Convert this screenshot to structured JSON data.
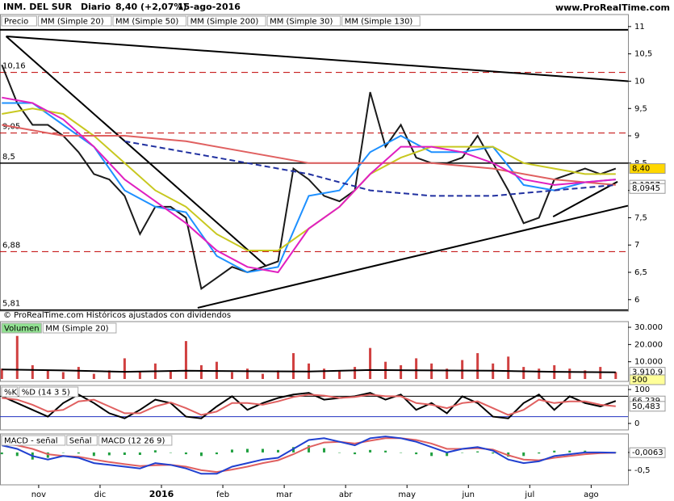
{
  "header": {
    "symbol": "INM. DEL SUR",
    "period": "Diario",
    "last": "8,40 (+2,07%)",
    "date": "15-ago-2016",
    "site": "www.ProRealTime.com",
    "footer": "© ProRealTime.com Históricos ajustados con dividendos"
  },
  "chart_data": [
    {
      "type": "line",
      "x": [
        0.4,
        0.65,
        0.9,
        1.15,
        1.4,
        1.65,
        1.9,
        2.15,
        2.4,
        2.65,
        2.9,
        3.15,
        3.4,
        3.65,
        3.9,
        4.15,
        4.4,
        4.65,
        4.9,
        5.15,
        5.4,
        5.65,
        5.9,
        6.15,
        6.4,
        6.65,
        6.9,
        7.15,
        7.4,
        7.65,
        7.9,
        8.15,
        8.4,
        8.65,
        8.9,
        9.15,
        9.4,
        9.65,
        9.9,
        10.15,
        10.4
      ],
      "xlim": [
        0.37,
        10.6
      ],
      "xticks": [
        {
          "value": 1,
          "label": "nov"
        },
        {
          "value": 2,
          "label": "dic"
        },
        {
          "value": 3,
          "label": "2016"
        },
        {
          "value": 4,
          "label": "feb"
        },
        {
          "value": 5,
          "label": "mar"
        },
        {
          "value": 6,
          "label": "abr"
        },
        {
          "value": 7,
          "label": "may"
        },
        {
          "value": 8,
          "label": "jun"
        },
        {
          "value": 9,
          "label": "jul"
        },
        {
          "value": 10,
          "label": "ago"
        }
      ],
      "ylim": [
        5.79,
        11.22
      ],
      "yticks": [
        6,
        {
          "value": 6.5,
          "label": "6,5"
        },
        7,
        {
          "value": 7.5,
          "label": "7,5"
        },
        8,
        {
          "value": 8.5,
          "label": "8,5"
        },
        9,
        {
          "value": 9.5,
          "label": "9,5"
        },
        10,
        {
          "value": 10.5,
          "label": "10,5"
        },
        11
      ],
      "series": [
        {
          "name": "Precio",
          "color": "#1a1a1a",
          "style": "line",
          "values": [
            10.3,
            9.6,
            9.2,
            9.2,
            9.0,
            8.7,
            8.3,
            8.2,
            7.9,
            7.2,
            7.7,
            7.7,
            7.5,
            6.2,
            6.4,
            6.6,
            6.5,
            6.6,
            6.7,
            8.4,
            8.2,
            7.9,
            7.8,
            8.0,
            9.8,
            8.8,
            9.2,
            8.6,
            8.5,
            8.5,
            8.6,
            9.0,
            8.5,
            8.0,
            7.4,
            7.5,
            8.2,
            8.3,
            8.4,
            8.3,
            8.4
          ]
        },
        {
          "name": "MM (Simple 20)",
          "color": "#1e90ff",
          "style": "line",
          "x": [
            0.4,
            0.9,
            1.4,
            1.9,
            2.4,
            2.9,
            3.4,
            3.9,
            4.4,
            4.9,
            5.4,
            5.9,
            6.4,
            6.9,
            7.4,
            7.9,
            8.4,
            8.9,
            9.4,
            9.9,
            10.4
          ],
          "values": [
            9.6,
            9.6,
            9.2,
            8.8,
            8.0,
            7.7,
            7.6,
            6.8,
            6.5,
            6.6,
            7.9,
            8.0,
            8.7,
            9.0,
            8.7,
            8.7,
            8.8,
            8.1,
            8.0,
            8.15,
            8.2
          ]
        },
        {
          "name": "MM (Simple 50)",
          "color": "#c8c820",
          "style": "line",
          "x": [
            0.4,
            0.9,
            1.4,
            1.9,
            2.4,
            2.9,
            3.4,
            3.9,
            4.4,
            4.9,
            5.4,
            5.9,
            6.4,
            6.9,
            7.4,
            7.9,
            8.4,
            8.9,
            9.4,
            9.9,
            10.4
          ],
          "values": [
            9.4,
            9.5,
            9.4,
            9.0,
            8.5,
            8.0,
            7.7,
            7.2,
            6.9,
            6.9,
            7.3,
            7.7,
            8.3,
            8.6,
            8.8,
            8.8,
            8.8,
            8.5,
            8.4,
            8.3,
            8.3
          ]
        },
        {
          "name": "MM (Simple 200)",
          "color": "#e06060",
          "style": "line",
          "x": [
            0.4,
            1.4,
            2.4,
            3.4,
            4.4,
            5.4,
            6.4,
            7.4,
            8.4,
            9.4,
            10.4
          ],
          "values": [
            9.2,
            9.0,
            9.0,
            8.9,
            8.7,
            8.5,
            8.5,
            8.5,
            8.4,
            8.2,
            8.1
          ]
        },
        {
          "name": "MM (Simple 30)",
          "color": "#e020c0",
          "style": "line",
          "x": [
            0.4,
            0.9,
            1.4,
            1.9,
            2.4,
            2.9,
            3.4,
            3.9,
            4.4,
            4.9,
            5.4,
            5.9,
            6.4,
            6.9,
            7.4,
            7.9,
            8.4,
            8.9,
            9.4,
            9.9,
            10.4
          ],
          "values": [
            9.7,
            9.6,
            9.3,
            8.8,
            8.2,
            7.8,
            7.4,
            6.9,
            6.6,
            6.5,
            7.3,
            7.7,
            8.3,
            8.8,
            8.8,
            8.7,
            8.5,
            8.2,
            8.1,
            8.15,
            8.2
          ]
        },
        {
          "name": "MM (Simple 130)",
          "color": "#2030a0",
          "style": "dashed",
          "x": [
            2.4,
            3.4,
            4.4,
            5.4,
            6.4,
            7.4,
            8.4,
            9.4,
            10.4
          ],
          "values": [
            8.9,
            8.7,
            8.5,
            8.3,
            8.0,
            7.9,
            7.9,
            8.0,
            8.1
          ]
        }
      ],
      "levels": [
        {
          "value": 10.16,
          "label": "10,16",
          "style": "dashed",
          "color": "#c00000"
        },
        {
          "value": 9.05,
          "label": "9,05",
          "style": "dashed",
          "color": "#c00000"
        },
        {
          "value": 8.5,
          "label": "8,5",
          "style": "solid",
          "color": "#000000"
        },
        {
          "value": 6.88,
          "label": "6,88",
          "style": "dashed",
          "color": "#c00000"
        },
        {
          "value": 5.81,
          "label": "5,81",
          "style": "solid",
          "color": "#000000"
        }
      ],
      "trend_lines": [
        [
          [
            0.37,
            10.94
          ],
          [
            10.6,
            10.94
          ]
        ],
        [
          [
            0.47,
            10.82
          ],
          [
            10.6,
            10.0
          ]
        ],
        [
          [
            0.47,
            10.82
          ],
          [
            4.71,
            6.61
          ]
        ],
        [
          [
            3.59,
            5.85
          ],
          [
            10.6,
            7.72
          ]
        ],
        [
          [
            9.38,
            7.52
          ],
          [
            10.43,
            8.16
          ]
        ]
      ],
      "last_labels": [
        {
          "value": 8.4,
          "label": "8,40",
          "color": "#ffd700"
        },
        {
          "value": 8.1257,
          "label": "8,1257",
          "color": "#ffffff"
        },
        {
          "value": 8.0945,
          "label": "8,0945",
          "color": "#ffffff"
        }
      ]
    },
    {
      "type": "bar",
      "ylim": [
        -1400,
        33300
      ],
      "yticks": [
        {
          "value": 10000,
          "label": "10.000"
        },
        {
          "value": 20000,
          "label": "20.000"
        },
        {
          "value": 30000,
          "label": "30.000"
        }
      ],
      "series": [
        {
          "name": "Volumen",
          "color": "#d04040",
          "style": "bar",
          "values": [
            6000,
            25000,
            8000,
            5000,
            4000,
            7000,
            3000,
            5000,
            12000,
            4000,
            9000,
            5000,
            22000,
            8000,
            10000,
            4000,
            6000,
            3000,
            5000,
            15000,
            9000,
            6000,
            5000,
            7000,
            18000,
            10000,
            8000,
            12000,
            9000,
            6000,
            11000,
            15000,
            9000,
            13000,
            7000,
            6000,
            8000,
            6000,
            5000,
            7000,
            4000
          ]
        },
        {
          "name": "MM (Simple 20)",
          "color": "#000000",
          "style": "line",
          "x": [
            0.4,
            1.4,
            2.4,
            3.4,
            4.4,
            5.4,
            6.4,
            7.4,
            8.4,
            9.4,
            10.4
          ],
          "values": [
            5500,
            5000,
            4200,
            4800,
            4500,
            4300,
            5200,
            5000,
            4800,
            4200,
            3910.9
          ]
        }
      ],
      "last_labels": [
        {
          "value": 3910.9,
          "label": "3.910,9",
          "color": "#ffffff"
        },
        {
          "value": 500,
          "label": "500",
          "color": "#ffff99"
        }
      ]
    },
    {
      "type": "line",
      "ylim": [
        -19,
        112
      ],
      "yticks": [
        0,
        100
      ],
      "ref_lines": [
        20,
        80
      ],
      "series": [
        {
          "name": "%K",
          "color": "#000000",
          "style": "line",
          "values": [
            80,
            60,
            40,
            20,
            60,
            85,
            60,
            30,
            15,
            40,
            70,
            60,
            20,
            15,
            50,
            80,
            40,
            60,
            75,
            85,
            90,
            70,
            75,
            80,
            90,
            70,
            85,
            40,
            60,
            30,
            80,
            60,
            20,
            15,
            60,
            85,
            40,
            80,
            60,
            50,
            66.239
          ]
        },
        {
          "name": "%D (14 3 5)",
          "color": "#e06060",
          "style": "line",
          "values": [
            75,
            70,
            55,
            35,
            40,
            65,
            70,
            50,
            30,
            30,
            50,
            62,
            45,
            25,
            35,
            60,
            60,
            55,
            65,
            78,
            85,
            82,
            75,
            78,
            85,
            80,
            80,
            60,
            55,
            45,
            60,
            65,
            45,
            25,
            40,
            70,
            60,
            65,
            65,
            55,
            50.483
          ]
        }
      ],
      "last_labels": [
        {
          "value": 66.239,
          "label": "66,239",
          "color": "#ffffff"
        },
        {
          "value": 50.483,
          "label": "50,483",
          "color": "#ffffff"
        }
      ]
    },
    {
      "type": "line",
      "ylim": [
        -0.91,
        0.52
      ],
      "yticks": [
        0,
        {
          "value": -0.5,
          "label": "-0,5"
        }
      ],
      "series": [
        {
          "name": "MACD - señal",
          "color": "#20a040",
          "style": "bar",
          "values": [
            -0.05,
            -0.1,
            -0.2,
            -0.15,
            0,
            -0.03,
            -0.1,
            -0.08,
            -0.07,
            -0.07,
            0.06,
            0,
            -0.05,
            -0.1,
            -0.05,
            0.08,
            0.1,
            0.1,
            0.07,
            0.15,
            0.2,
            0.12,
            0,
            -0.05,
            0.07,
            0.05,
            0,
            -0.05,
            -0.1,
            -0.1,
            0,
            0.03,
            -0.03,
            -0.12,
            -0.1,
            -0.03,
            0.05,
            0.05,
            0.05,
            0.02,
            0.0037
          ]
        },
        {
          "name": "Señal",
          "color": "#e06060",
          "style": "line",
          "values": [
            0.25,
            0.2,
            0.1,
            -0.05,
            -0.1,
            -0.12,
            -0.2,
            -0.27,
            -0.33,
            -0.38,
            -0.36,
            -0.35,
            -0.4,
            -0.5,
            -0.55,
            -0.48,
            -0.4,
            -0.3,
            -0.22,
            -0.05,
            0.15,
            0.28,
            0.3,
            0.25,
            0.33,
            0.4,
            0.4,
            0.35,
            0.25,
            0.1,
            0.1,
            0.12,
            0.08,
            -0.08,
            -0.2,
            -0.22,
            -0.15,
            -0.1,
            -0.05,
            -0.02,
            -0.01
          ]
        },
        {
          "name": "MACD (12 26 9)",
          "color": "#2040d0",
          "style": "line",
          "values": [
            0.2,
            0.1,
            -0.1,
            -0.2,
            -0.1,
            -0.15,
            -0.3,
            -0.35,
            -0.4,
            -0.45,
            -0.3,
            -0.35,
            -0.45,
            -0.6,
            -0.6,
            -0.4,
            -0.3,
            -0.2,
            -0.15,
            0.1,
            0.35,
            0.4,
            0.3,
            0.2,
            0.4,
            0.45,
            0.4,
            0.3,
            0.15,
            0.0,
            0.1,
            0.15,
            0.05,
            -0.2,
            -0.3,
            -0.25,
            -0.1,
            -0.05,
            0.0,
            0.0,
            -0.0063
          ]
        }
      ],
      "last_labels": [
        {
          "value": -0.0063,
          "label": "-0,0063",
          "color": "#ffffff"
        }
      ]
    }
  ]
}
